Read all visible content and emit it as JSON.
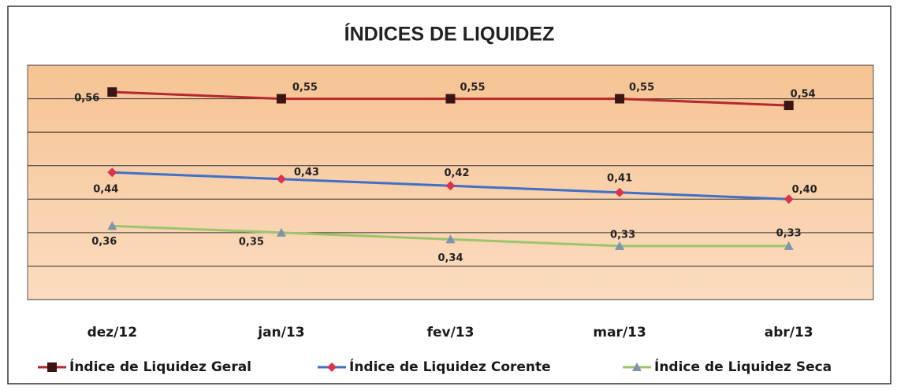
{
  "chart_data": {
    "type": "line",
    "title": "ÍNDICES DE LIQUIDEZ",
    "categories": [
      "dez/12",
      "jan/13",
      "fev/13",
      "mar/13",
      "abr/13"
    ],
    "ylim": [
      0.25,
      0.6
    ],
    "yticks": [
      0.25,
      0.3,
      0.35,
      0.4,
      0.45,
      0.5,
      0.55,
      0.6
    ],
    "grid": true,
    "legend": "bottom",
    "series": [
      {
        "name": "Índice de Liquidez Geral",
        "color": "#b5282e",
        "marker": "square",
        "marker_color": "#3b1414",
        "values": [
          0.56,
          0.55,
          0.55,
          0.55,
          0.54
        ],
        "value_labels": [
          "0,56",
          "0,55",
          "0,55",
          "0,55",
          "0,54"
        ]
      },
      {
        "name": "Índice de Liquidez Corente",
        "color": "#3f6fc6",
        "marker": "diamond",
        "marker_color": "#d8354b",
        "values": [
          0.44,
          0.43,
          0.42,
          0.41,
          0.4
        ],
        "value_labels": [
          "0,44",
          "0,43",
          "0,42",
          "0,41",
          "0,40"
        ]
      },
      {
        "name": "Índice de Liquidez Seca",
        "color": "#9cc46c",
        "marker": "triangle",
        "marker_color": "#7f93ad",
        "values": [
          0.36,
          0.35,
          0.34,
          0.33,
          0.33
        ],
        "value_labels": [
          "0,36",
          "0,35",
          "0,34",
          "0,33",
          "0,33"
        ]
      }
    ]
  }
}
